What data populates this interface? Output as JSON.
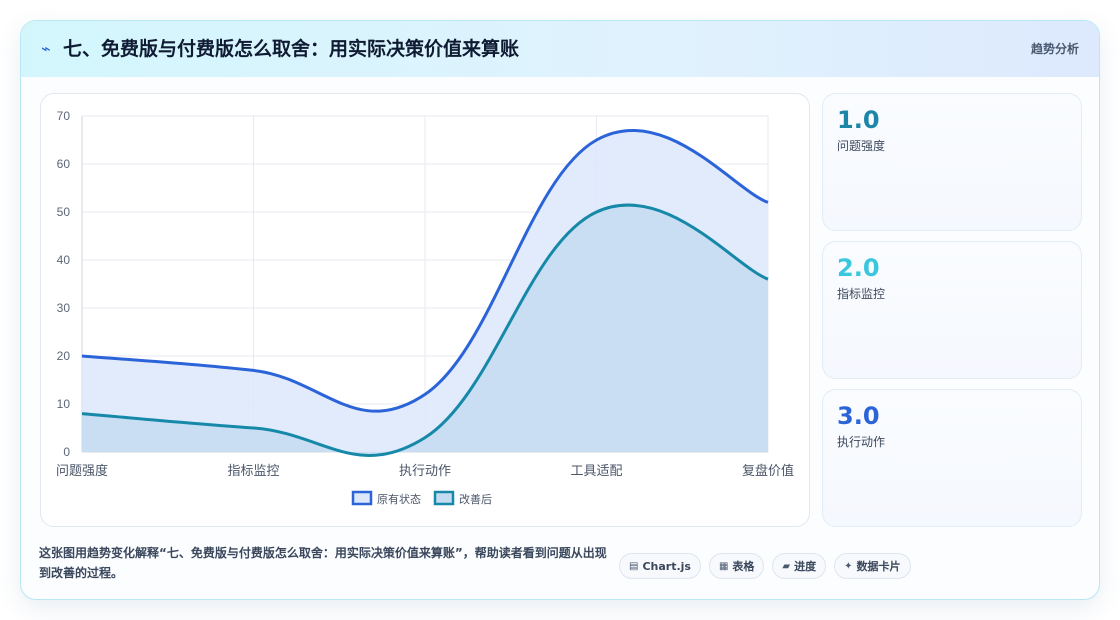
{
  "header": {
    "icon": "⌁",
    "title": "七、免费版与付费版怎么取舍：用实际决策价值来算账",
    "tag": "趋势分析"
  },
  "chart_data": {
    "type": "area",
    "categories": [
      "问题强度",
      "指标监控",
      "执行动作",
      "工具适配",
      "复盘价值"
    ],
    "series": [
      {
        "name": "原有状态",
        "values": [
          20,
          17,
          12,
          65,
          52
        ],
        "color": "#2b63d8",
        "fill": "#dde7fb"
      },
      {
        "name": "改善后",
        "values": [
          8,
          5,
          3,
          50,
          36
        ],
        "color": "#1688a8",
        "fill": "#c4dcf1"
      }
    ],
    "ylim": [
      0,
      70
    ],
    "yticks": [
      0,
      10,
      20,
      30,
      40,
      50,
      60,
      70
    ],
    "grid": true,
    "legend": "bottom"
  },
  "stats": [
    {
      "value": "1.0",
      "label": "问题强度",
      "color": "#1c86a8"
    },
    {
      "value": "2.0",
      "label": "指标监控",
      "color": "#38c7dd"
    },
    {
      "value": "3.0",
      "label": "执行动作",
      "color": "#2b63d8"
    }
  ],
  "footer": {
    "description": "这张图用趋势变化解释“七、免费版与付费版怎么取舍：用实际决策价值来算账”，帮助读者看到问题从出现到改善的过程。",
    "chips": [
      {
        "icon": "▤",
        "label": "Chart.js"
      },
      {
        "icon": "▦",
        "label": "表格"
      },
      {
        "icon": "▰",
        "label": "进度"
      },
      {
        "icon": "✦",
        "label": "数据卡片"
      }
    ]
  }
}
